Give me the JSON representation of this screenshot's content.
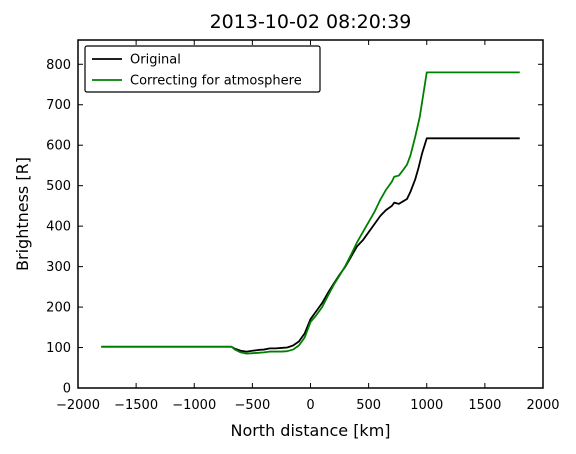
{
  "chart_data": {
    "type": "line",
    "title": "2013-10-02 08:20:39",
    "xlabel": "North distance [km]",
    "ylabel": "Brightness [R]",
    "xlim": [
      -2000,
      2000
    ],
    "ylim": [
      0,
      860
    ],
    "xticks": [
      -2000,
      -1500,
      -1000,
      -500,
      0,
      500,
      1000,
      1500,
      2000
    ],
    "yticks": [
      0,
      100,
      200,
      300,
      400,
      500,
      600,
      700,
      800
    ],
    "xtick_labels": [
      "−2000",
      "−1500",
      "−1000",
      "−500",
      "0",
      "500",
      "1000",
      "1500",
      "2000"
    ],
    "ytick_labels": [
      "0",
      "100",
      "200",
      "300",
      "400",
      "500",
      "600",
      "700",
      "800"
    ],
    "grid": false,
    "legend_position": "top-left",
    "series": [
      {
        "name": "Original",
        "color": "#000000",
        "points": [
          [
            -1800,
            102
          ],
          [
            -1000,
            102
          ],
          [
            -700,
            102
          ],
          [
            -680,
            102
          ],
          [
            -650,
            97
          ],
          [
            -600,
            92
          ],
          [
            -550,
            90
          ],
          [
            -500,
            92
          ],
          [
            -450,
            94
          ],
          [
            -400,
            95
          ],
          [
            -350,
            98
          ],
          [
            -300,
            98
          ],
          [
            -250,
            99
          ],
          [
            -200,
            100
          ],
          [
            -150,
            105
          ],
          [
            -100,
            115
          ],
          [
            -50,
            135
          ],
          [
            0,
            170
          ],
          [
            50,
            190
          ],
          [
            100,
            210
          ],
          [
            150,
            235
          ],
          [
            200,
            258
          ],
          [
            250,
            280
          ],
          [
            300,
            300
          ],
          [
            350,
            325
          ],
          [
            400,
            350
          ],
          [
            450,
            365
          ],
          [
            500,
            385
          ],
          [
            550,
            405
          ],
          [
            600,
            425
          ],
          [
            650,
            440
          ],
          [
            700,
            450
          ],
          [
            720,
            458
          ],
          [
            760,
            455
          ],
          [
            800,
            462
          ],
          [
            830,
            467
          ],
          [
            860,
            485
          ],
          [
            900,
            515
          ],
          [
            930,
            545
          ],
          [
            960,
            580
          ],
          [
            1000,
            617
          ],
          [
            1800,
            617
          ]
        ]
      },
      {
        "name": "Correcting for atmosphere",
        "color": "#008000",
        "points": [
          [
            -1800,
            102
          ],
          [
            -1000,
            102
          ],
          [
            -700,
            102
          ],
          [
            -680,
            102
          ],
          [
            -650,
            95
          ],
          [
            -600,
            88
          ],
          [
            -550,
            85
          ],
          [
            -500,
            86
          ],
          [
            -450,
            87
          ],
          [
            -400,
            88
          ],
          [
            -350,
            90
          ],
          [
            -300,
            90
          ],
          [
            -250,
            90
          ],
          [
            -200,
            91
          ],
          [
            -150,
            95
          ],
          [
            -100,
            105
          ],
          [
            -50,
            125
          ],
          [
            0,
            163
          ],
          [
            50,
            180
          ],
          [
            100,
            200
          ],
          [
            150,
            228
          ],
          [
            200,
            255
          ],
          [
            250,
            278
          ],
          [
            300,
            302
          ],
          [
            350,
            330
          ],
          [
            400,
            360
          ],
          [
            450,
            385
          ],
          [
            500,
            410
          ],
          [
            550,
            435
          ],
          [
            600,
            465
          ],
          [
            650,
            490
          ],
          [
            700,
            510
          ],
          [
            720,
            522
          ],
          [
            760,
            525
          ],
          [
            800,
            540
          ],
          [
            830,
            552
          ],
          [
            860,
            575
          ],
          [
            900,
            620
          ],
          [
            940,
            670
          ],
          [
            970,
            725
          ],
          [
            1000,
            780
          ],
          [
            1800,
            780
          ]
        ]
      }
    ]
  }
}
